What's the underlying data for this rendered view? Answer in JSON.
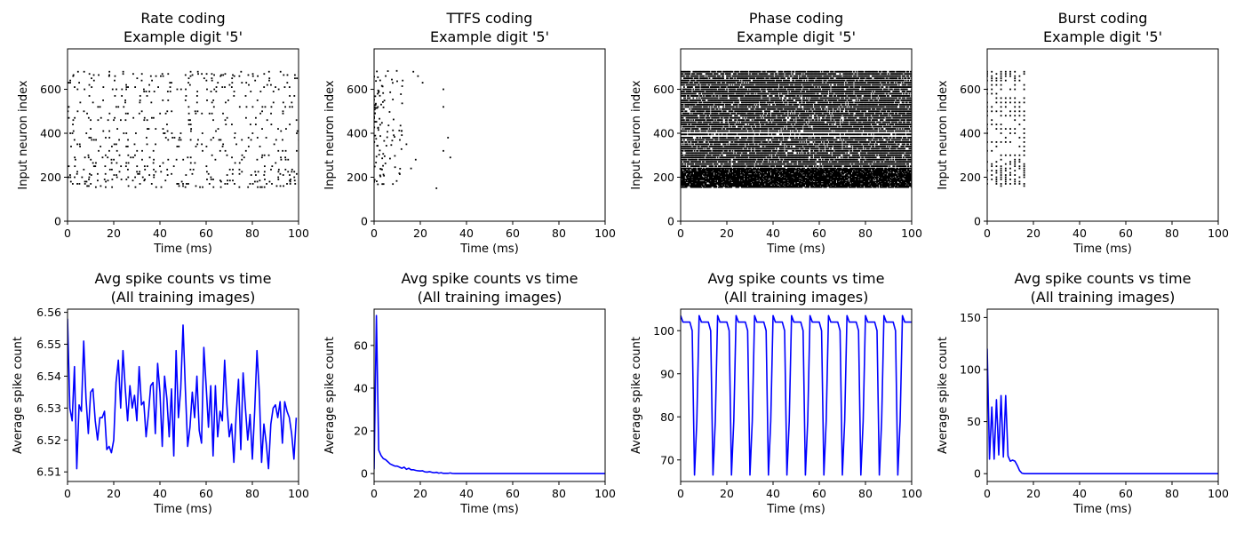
{
  "chart_data": [
    {
      "type": "scatter",
      "title": [
        "Rate coding",
        "Example digit '5'"
      ],
      "xlabel": "Time (ms)",
      "ylabel": "Input neuron index",
      "xlim": [
        0,
        100
      ],
      "ylim": [
        0,
        784
      ],
      "xticks": [
        0,
        20,
        40,
        60,
        80,
        100
      ],
      "yticks": [
        0,
        200,
        400,
        600
      ],
      "grid": false,
      "marker_color": "#000000",
      "raster": {
        "pattern": "random",
        "t_min": 0,
        "t_max": 100,
        "t_step": 1,
        "neuron_min": 150,
        "neuron_max": 685,
        "rows": [
          155,
          160,
          170,
          180,
          185,
          190,
          200,
          210,
          215,
          225,
          235,
          250,
          265,
          280,
          290,
          300,
          320,
          340,
          350,
          370,
          380,
          400,
          410,
          420,
          440,
          460,
          470,
          490,
          500,
          520,
          540,
          550,
          570,
          590,
          600,
          610,
          620,
          630,
          640,
          650,
          660,
          665,
          670,
          680
        ],
        "density": 0.13
      }
    },
    {
      "type": "scatter",
      "title": [
        "TTFS coding",
        "Example digit '5'"
      ],
      "xlabel": "Time (ms)",
      "ylabel": "Input neuron index",
      "xlim": [
        0,
        100
      ],
      "ylim": [
        0,
        784
      ],
      "xticks": [
        0,
        20,
        40,
        60,
        80,
        100
      ],
      "yticks": [
        0,
        200,
        400,
        600
      ],
      "grid": false,
      "marker_color": "#000000",
      "raster": {
        "pattern": "ttfs",
        "t_min": 0,
        "t_max": 34,
        "neuron_min": 150,
        "neuron_max": 685,
        "count": 110,
        "outliers": [
          [
            17,
            680
          ],
          [
            19,
            660
          ],
          [
            21,
            630
          ],
          [
            27,
            150
          ],
          [
            30,
            600
          ],
          [
            30,
            520
          ],
          [
            30,
            320
          ],
          [
            32,
            380
          ],
          [
            33,
            290
          ],
          [
            16,
            240
          ],
          [
            18,
            280
          ],
          [
            14,
            350
          ]
        ]
      }
    },
    {
      "type": "scatter",
      "title": [
        "Phase coding",
        "Example digit '5'"
      ],
      "xlabel": "Time (ms)",
      "ylabel": "Input neuron index",
      "xlim": [
        0,
        100
      ],
      "ylim": [
        0,
        784
      ],
      "xticks": [
        0,
        20,
        40,
        60,
        80,
        100
      ],
      "yticks": [
        0,
        200,
        400,
        600
      ],
      "grid": false,
      "marker_color": "#000000",
      "raster": {
        "pattern": "phase",
        "t_min": 0,
        "t_max": 100,
        "t_step": 0.5,
        "neuron_min": 150,
        "neuron_max": 685,
        "rows": [
          155,
          160,
          165,
          170,
          175,
          180,
          185,
          190,
          195,
          200,
          205,
          210,
          215,
          220,
          225,
          230,
          235,
          240,
          250,
          260,
          270,
          280,
          290,
          300,
          310,
          320,
          330,
          340,
          350,
          360,
          370,
          380,
          395,
          410,
          420,
          430,
          440,
          450,
          460,
          470,
          480,
          490,
          500,
          510,
          520,
          530,
          540,
          550,
          560,
          570,
          580,
          590,
          600,
          610,
          620,
          630,
          640,
          650,
          660,
          670,
          680
        ],
        "density": 0.85
      }
    },
    {
      "type": "scatter",
      "title": [
        "Burst coding",
        "Example digit '5'"
      ],
      "xlabel": "Time (ms)",
      "ylabel": "Input neuron index",
      "xlim": [
        0,
        100
      ],
      "ylim": [
        0,
        784
      ],
      "xticks": [
        0,
        20,
        40,
        60,
        80,
        100
      ],
      "yticks": [
        0,
        200,
        400,
        600
      ],
      "grid": false,
      "marker_color": "#000000",
      "raster": {
        "pattern": "burst",
        "t_min": 0,
        "t_max": 16,
        "t_step": 2,
        "neuron_min": 150,
        "neuron_max": 685,
        "rows": [
          160,
          170,
          180,
          190,
          200,
          210,
          220,
          230,
          240,
          250,
          260,
          270,
          280,
          300,
          320,
          340,
          360,
          380,
          400,
          420,
          440,
          460,
          480,
          500,
          520,
          540,
          560,
          580,
          600,
          620,
          640,
          650,
          660,
          670,
          680
        ],
        "density": 0.6
      }
    },
    {
      "type": "line",
      "title": [
        "Avg spike counts vs time",
        "(All training images)"
      ],
      "xlabel": "Time (ms)",
      "ylabel": "Average spike count",
      "xlim": [
        0,
        100
      ],
      "ylim": [
        6.507,
        6.561
      ],
      "xticks": [
        0,
        20,
        40,
        60,
        80,
        100
      ],
      "yticks": [
        6.51,
        6.52,
        6.53,
        6.54,
        6.55,
        6.56
      ],
      "ytick_decimals": 2,
      "grid": false,
      "series": [
        {
          "color": "#0000ff",
          "x": [
            0,
            1,
            2,
            3,
            4,
            5,
            6,
            7,
            8,
            9,
            10,
            11,
            12,
            13,
            14,
            15,
            16,
            17,
            18,
            19,
            20,
            21,
            22,
            23,
            24,
            25,
            26,
            27,
            28,
            29,
            30,
            31,
            32,
            33,
            34,
            35,
            36,
            37,
            38,
            39,
            40,
            41,
            42,
            43,
            44,
            45,
            46,
            47,
            48,
            49,
            50,
            51,
            52,
            53,
            54,
            55,
            56,
            57,
            58,
            59,
            60,
            61,
            62,
            63,
            64,
            65,
            66,
            67,
            68,
            69,
            70,
            71,
            72,
            73,
            74,
            75,
            76,
            77,
            78,
            79,
            80,
            81,
            82,
            83,
            84,
            85,
            86,
            87,
            88,
            89,
            90,
            91,
            92,
            93,
            94,
            95,
            96,
            97,
            98,
            99
          ],
          "y": [
            6.558,
            6.53,
            6.526,
            6.543,
            6.511,
            6.531,
            6.529,
            6.551,
            6.533,
            6.522,
            6.535,
            6.536,
            6.526,
            6.52,
            6.527,
            6.527,
            6.529,
            6.517,
            6.518,
            6.516,
            6.52,
            6.538,
            6.545,
            6.53,
            6.548,
            6.536,
            6.526,
            6.537,
            6.53,
            6.534,
            6.526,
            6.543,
            6.531,
            6.532,
            6.521,
            6.528,
            6.537,
            6.538,
            6.522,
            6.544,
            6.535,
            6.518,
            6.54,
            6.533,
            6.521,
            6.536,
            6.515,
            6.548,
            6.527,
            6.536,
            6.556,
            6.536,
            6.518,
            6.524,
            6.535,
            6.527,
            6.54,
            6.523,
            6.519,
            6.549,
            6.537,
            6.524,
            6.537,
            6.515,
            6.537,
            6.521,
            6.529,
            6.526,
            6.545,
            6.531,
            6.521,
            6.525,
            6.513,
            6.528,
            6.539,
            6.517,
            6.541,
            6.53,
            6.52,
            6.528,
            6.514,
            6.529,
            6.548,
            6.535,
            6.513,
            6.525,
            6.519,
            6.511,
            6.525,
            6.53,
            6.531,
            6.527,
            6.532,
            6.519,
            6.532,
            6.529,
            6.527,
            6.522,
            6.514,
            6.527
          ]
        }
      ]
    },
    {
      "type": "line",
      "title": [
        "Avg spike counts vs time",
        "(All training images)"
      ],
      "xlabel": "Time (ms)",
      "ylabel": "Average spike count",
      "xlim": [
        0,
        100
      ],
      "ylim": [
        -3.7,
        77
      ],
      "xticks": [
        0,
        20,
        40,
        60,
        80,
        100
      ],
      "yticks": [
        0,
        20,
        40,
        60
      ],
      "grid": false,
      "series": [
        {
          "color": "#0000ff",
          "x": [
            0,
            1,
            2,
            3,
            4,
            5,
            6,
            7,
            8,
            9,
            10,
            11,
            12,
            13,
            14,
            15,
            16,
            17,
            18,
            19,
            20,
            21,
            22,
            23,
            24,
            25,
            26,
            27,
            28,
            29,
            30,
            31,
            32,
            33,
            34,
            35,
            40,
            50,
            60,
            70,
            80,
            90,
            100
          ],
          "y": [
            2,
            74,
            11,
            8.5,
            7,
            6.5,
            5.5,
            4.5,
            4,
            3.5,
            3.5,
            3,
            2.5,
            3,
            2,
            2.5,
            1.8,
            1.8,
            1.5,
            1.3,
            1.2,
            1.3,
            0.8,
            0.7,
            0.9,
            0.6,
            0.4,
            0.6,
            0.2,
            0.4,
            0.1,
            0.1,
            0.1,
            0.3,
            0.05,
            0,
            0,
            0,
            0,
            0,
            0,
            0,
            0
          ]
        }
      ]
    },
    {
      "type": "line",
      "title": [
        "Avg spike counts vs time",
        "(All training images)"
      ],
      "xlabel": "Time (ms)",
      "ylabel": "Average spike count",
      "xlim": [
        0,
        100
      ],
      "ylim": [
        65,
        105
      ],
      "xticks": [
        0,
        20,
        40,
        60,
        80,
        100
      ],
      "yticks": [
        70,
        80,
        90,
        100
      ],
      "grid": false,
      "series": [
        {
          "color": "#0000ff",
          "x": [],
          "y": [],
          "pattern": {
            "period": 8,
            "start": 0,
            "profile": [
              103.5,
              102,
              102,
              102,
              102,
              100,
              66.5,
              79,
              103.5
            ]
          }
        }
      ]
    },
    {
      "type": "line",
      "title": [
        "Avg spike counts vs time",
        "(All training images)"
      ],
      "xlabel": "Time (ms)",
      "ylabel": "Average spike count",
      "xlim": [
        0,
        100
      ],
      "ylim": [
        -7.5,
        158
      ],
      "xticks": [
        0,
        20,
        40,
        60,
        80,
        100
      ],
      "yticks": [
        0,
        50,
        100,
        150
      ],
      "grid": false,
      "series": [
        {
          "color": "#0000ff",
          "x": [
            0,
            1,
            2,
            3,
            4,
            5,
            6,
            7,
            8,
            9,
            10,
            11,
            12,
            13,
            14,
            15,
            16,
            17,
            20,
            30,
            40,
            50,
            60,
            70,
            80,
            90,
            100
          ],
          "y": [
            120,
            14,
            64,
            14,
            71,
            18,
            75,
            16,
            75,
            17,
            12,
            13,
            12,
            8,
            3,
            0.5,
            0,
            0,
            0,
            0,
            0,
            0,
            0,
            0,
            0,
            0,
            0
          ]
        }
      ]
    }
  ]
}
